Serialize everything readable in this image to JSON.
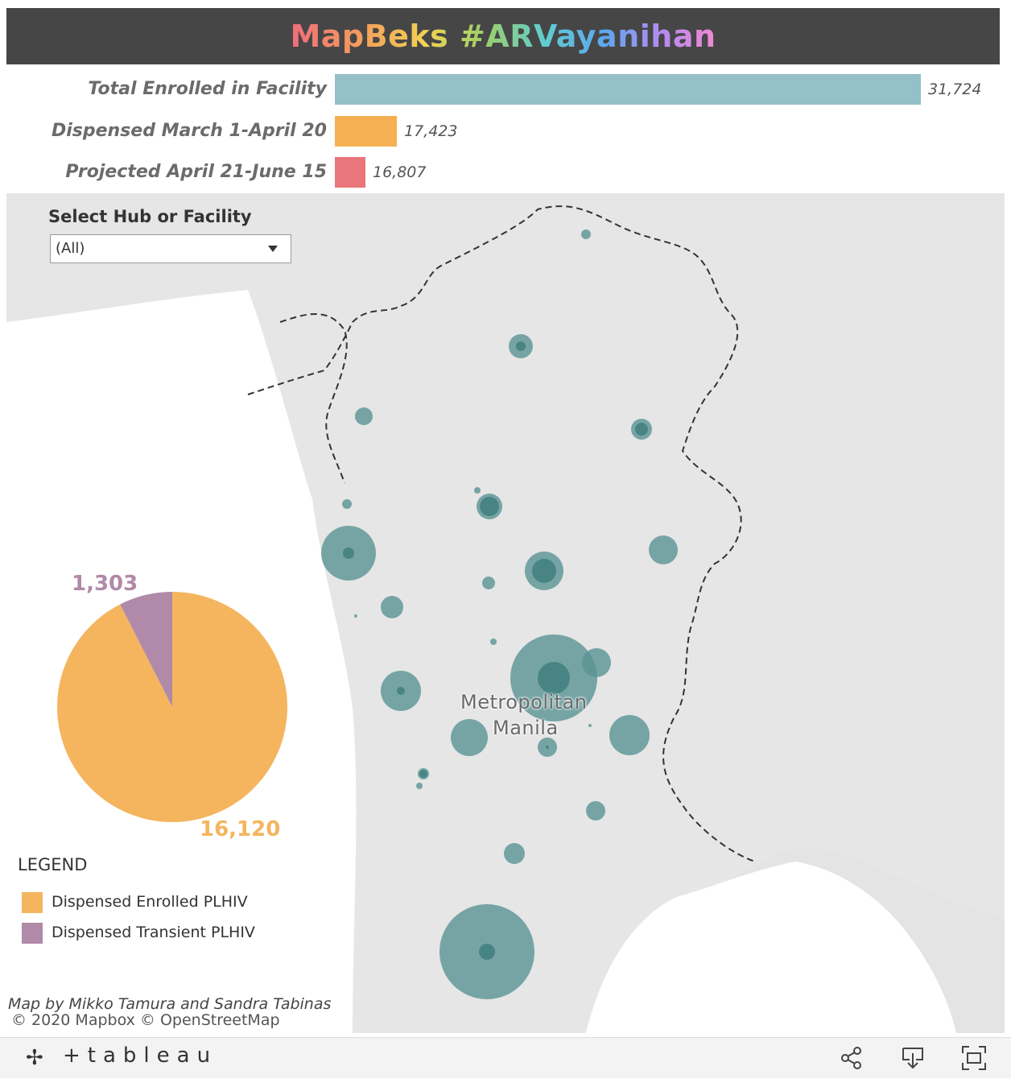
{
  "title": "MapBeks #ARVayanihan",
  "summary_bars": [
    {
      "label": "Total Enrolled in Facility",
      "value": 31724,
      "value_text": "31,724",
      "color": "#94c0c7"
    },
    {
      "label": "Dispensed March 1-April 20",
      "value": 17423,
      "value_text": "17,423",
      "color": "#f4b052"
    },
    {
      "label": "Projected April 21-June 15",
      "value": 16807,
      "value_text": "16,807",
      "color": "#e8767a"
    }
  ],
  "filter": {
    "label": "Select Hub or Facility",
    "value": "(All)"
  },
  "map": {
    "region_label_1": "Metropolitan",
    "region_label_2": "Manila",
    "bubble_color": "#5a9393",
    "credit": "Map by Mikko Tamura and Sandra Tabinas",
    "copyright": "© 2020 Mapbox  © OpenStreetMap"
  },
  "pie": {
    "slices": [
      {
        "name": "Dispensed Enrolled PLHIV",
        "value": 16120,
        "value_text": "16,120",
        "color": "#f4b55e"
      },
      {
        "name": "Dispensed Transient PLHIV",
        "value": 1303,
        "value_text": "1,303",
        "color": "#b08aa8"
      }
    ]
  },
  "legend": {
    "title": "LEGEND",
    "items": [
      {
        "label": "Dispensed Enrolled PLHIV",
        "color": "#f4b55e"
      },
      {
        "label": "Dispensed Transient PLHIV",
        "color": "#b08aa8"
      }
    ]
  },
  "footer": {
    "brand": "tableau",
    "icons": [
      "share-icon",
      "download-icon",
      "fullscreen-icon"
    ]
  }
}
